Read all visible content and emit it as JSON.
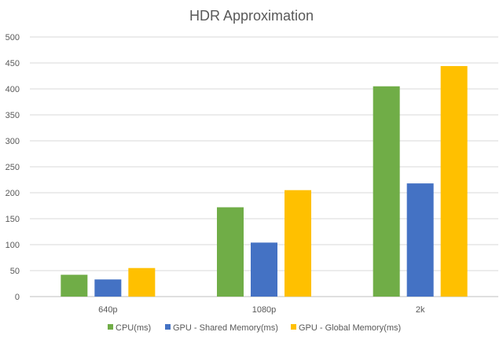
{
  "chart_data": {
    "type": "bar",
    "title": "HDR Approximation",
    "categories": [
      "640p",
      "1080p",
      "2k"
    ],
    "series": [
      {
        "name": "CPU(ms)",
        "values": [
          42,
          172,
          405
        ],
        "color": "#70AD47"
      },
      {
        "name": "GPU - Shared Memory(ms)",
        "values": [
          33,
          104,
          218
        ],
        "color": "#4472C4"
      },
      {
        "name": "GPU - Global Memory(ms)",
        "values": [
          55,
          205,
          444
        ],
        "color": "#FFC000"
      }
    ],
    "ylim": [
      0,
      500
    ],
    "yticks": [
      "0",
      "50",
      "100",
      "150",
      "200",
      "250",
      "300",
      "350",
      "400",
      "450",
      "500"
    ],
    "grid": true,
    "legend": "bottom"
  }
}
